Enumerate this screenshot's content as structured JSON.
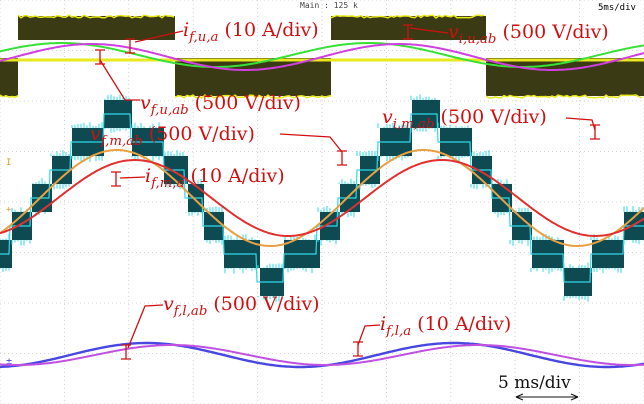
{
  "chart_data": {
    "type": "line",
    "header": {
      "center": "Main : 125 k",
      "right": "5ms/div"
    },
    "scale_label": "5 ms/div",
    "colors": {
      "grid": "#c8c8c8",
      "label": "#d01010",
      "yellow": "#e8e81e",
      "dark_olive": "#3a3a14",
      "green": "#38e038",
      "magenta": "#d040e0",
      "teal": "#0e4a52",
      "cyan": "#30d8e8",
      "orange": "#e8a040",
      "red": "#e03030",
      "blue": "#4848e0",
      "violet": "#c050e0"
    },
    "panels": [
      {
        "id": "upper",
        "series": [
          {
            "sym": "i",
            "sub": "f,u,a",
            "unit": " (10 A/div)",
            "color": "#38e038"
          },
          {
            "sym": "v",
            "sub": "f,u,ab",
            "unit": " (500 V/div)",
            "color": "#d040e0"
          }
        ],
        "extra_label": {
          "sym": "v",
          "sub": "i,u,ab",
          "unit": " (500 V/div)"
        }
      },
      {
        "id": "middle",
        "series": [
          {
            "sym": "v",
            "sub": "f,m,ab",
            "unit": " (500 V/div)",
            "color": "#e8a040"
          },
          {
            "sym": "i",
            "sub": "f,m,a",
            "unit": " (10 A/div)",
            "color": "#e03030"
          }
        ],
        "extra_label": {
          "sym": "v",
          "sub": "i,m,ab",
          "unit": " (500 V/div)"
        }
      },
      {
        "id": "lower",
        "series": [
          {
            "sym": "v",
            "sub": "f,l,ab",
            "unit": " (500 V/div)",
            "color": "#4848e0"
          },
          {
            "sym": "i",
            "sub": "f,l,a",
            "unit": " (10 A/div)",
            "color": "#c050e0"
          }
        ]
      }
    ]
  }
}
